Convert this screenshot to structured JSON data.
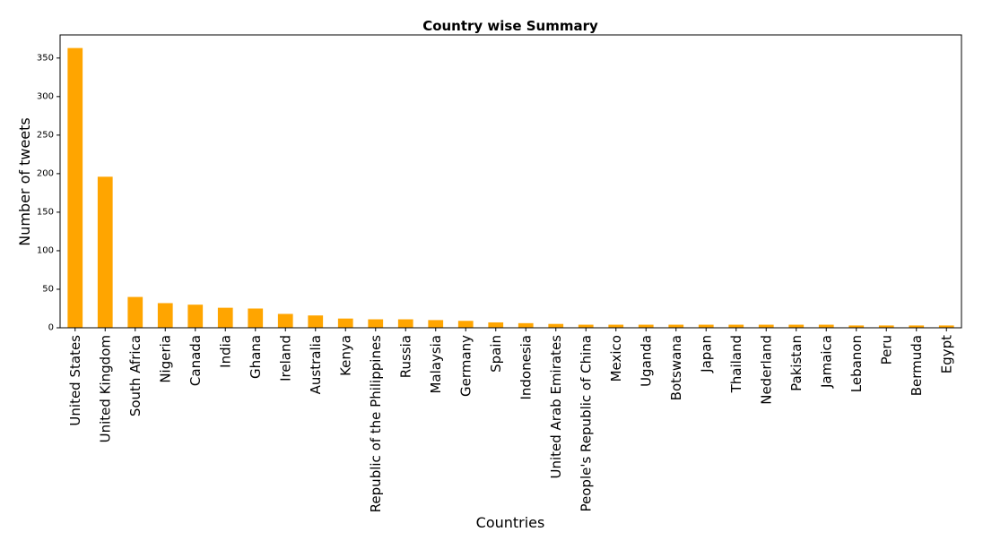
{
  "chart_data": {
    "type": "bar",
    "title": "Country wise Summary",
    "xlabel": "Countries",
    "ylabel": "Number of tweets",
    "ylim": [
      0,
      380
    ],
    "yticks": [
      0,
      50,
      100,
      150,
      200,
      250,
      300,
      350
    ],
    "grid": false,
    "bar_color": "#FFA500",
    "categories": [
      "United States",
      "United Kingdom",
      "South Africa",
      "Nigeria",
      "Canada",
      "India",
      "Ghana",
      "Ireland",
      "Australia",
      "Kenya",
      "Republic of the Philippines",
      "Russia",
      "Malaysia",
      "Germany",
      "Spain",
      "Indonesia",
      "United Arab Emirates",
      "People's Republic of China",
      "Mexico",
      "Uganda",
      "Botswana",
      "Japan",
      "Thailand",
      "Nederland",
      "Pakistan",
      "Jamaica",
      "Lebanon",
      "Peru",
      "Bermuda",
      "Egypt"
    ],
    "values": [
      363,
      196,
      40,
      32,
      30,
      26,
      25,
      18,
      16,
      12,
      11,
      11,
      10,
      9,
      7,
      6,
      5,
      4,
      4,
      4,
      4,
      4,
      4,
      4,
      4,
      4,
      3,
      3,
      3,
      3
    ]
  }
}
